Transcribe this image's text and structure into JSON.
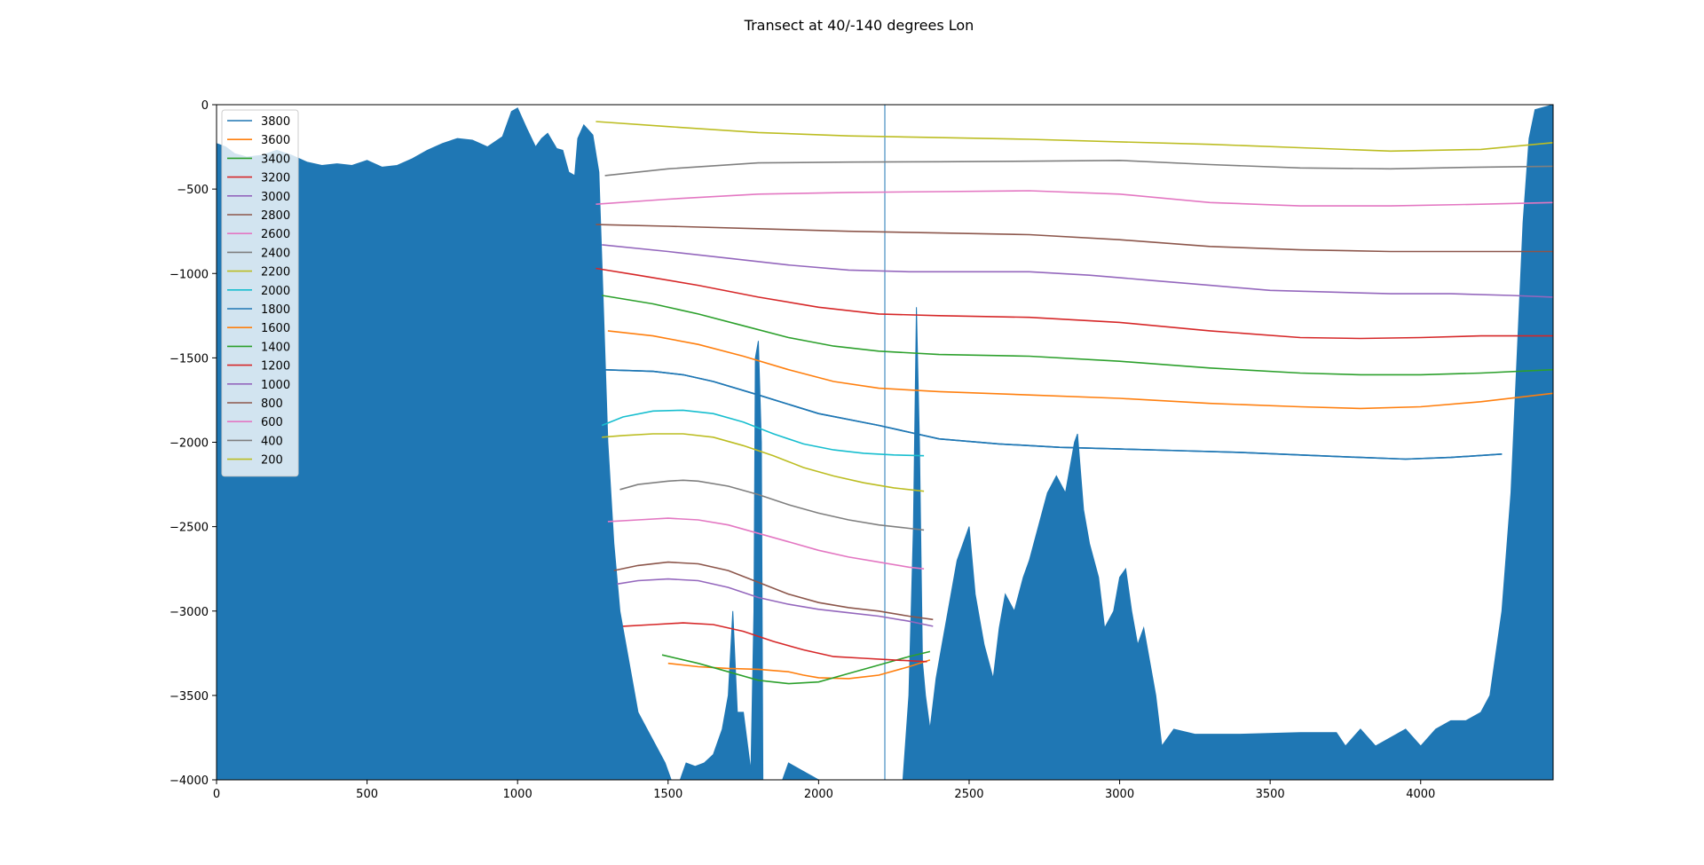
{
  "chart_data": {
    "type": "line",
    "title": "Transect at 40/-140 degrees Lon",
    "xlabel": "",
    "ylabel": "",
    "xlim": [
      0,
      4440
    ],
    "ylim": [
      -4000,
      0
    ],
    "x_ticks": [
      0,
      500,
      1000,
      1500,
      2000,
      2500,
      3000,
      3500,
      4000
    ],
    "y_ticks": [
      0,
      -500,
      -1000,
      -1500,
      -2000,
      -2500,
      -3000,
      -3500,
      -4000
    ],
    "grid": false,
    "legend_position": "upper-left",
    "vertical_line_x": 2220,
    "bathymetry": {
      "color": "#1f77b4",
      "points": [
        [
          0,
          -230
        ],
        [
          30,
          -250
        ],
        [
          60,
          -290
        ],
        [
          100,
          -310
        ],
        [
          150,
          -300
        ],
        [
          200,
          -270
        ],
        [
          250,
          -300
        ],
        [
          300,
          -340
        ],
        [
          350,
          -360
        ],
        [
          400,
          -350
        ],
        [
          450,
          -360
        ],
        [
          500,
          -330
        ],
        [
          550,
          -370
        ],
        [
          600,
          -360
        ],
        [
          650,
          -320
        ],
        [
          700,
          -270
        ],
        [
          750,
          -230
        ],
        [
          800,
          -200
        ],
        [
          850,
          -210
        ],
        [
          900,
          -250
        ],
        [
          950,
          -190
        ],
        [
          980,
          -40
        ],
        [
          1000,
          -20
        ],
        [
          1030,
          -140
        ],
        [
          1060,
          -250
        ],
        [
          1080,
          -200
        ],
        [
          1100,
          -170
        ],
        [
          1130,
          -260
        ],
        [
          1150,
          -270
        ],
        [
          1170,
          -400
        ],
        [
          1190,
          -420
        ],
        [
          1200,
          -200
        ],
        [
          1220,
          -120
        ],
        [
          1250,
          -180
        ],
        [
          1270,
          -400
        ],
        [
          1285,
          -1200
        ],
        [
          1300,
          -2000
        ],
        [
          1320,
          -2600
        ],
        [
          1340,
          -3000
        ],
        [
          1370,
          -3300
        ],
        [
          1400,
          -3600
        ],
        [
          1430,
          -3700
        ],
        [
          1460,
          -3800
        ],
        [
          1490,
          -3900
        ],
        [
          1510,
          -4000
        ],
        [
          1540,
          -4000
        ],
        [
          1560,
          -3900
        ],
        [
          1590,
          -3920
        ],
        [
          1620,
          -3900
        ],
        [
          1650,
          -3850
        ],
        [
          1680,
          -3700
        ],
        [
          1700,
          -3500
        ],
        [
          1715,
          -3000
        ],
        [
          1730,
          -3600
        ],
        [
          1750,
          -3600
        ],
        [
          1775,
          -3950
        ],
        [
          1785,
          -3000
        ],
        [
          1790,
          -1500
        ],
        [
          1800,
          -1400
        ],
        [
          1810,
          -2000
        ],
        [
          1815,
          -4000
        ],
        [
          1880,
          -4000
        ],
        [
          1900,
          -3900
        ],
        [
          1950,
          -3950
        ],
        [
          2000,
          -4000
        ],
        [
          2280,
          -4000
        ],
        [
          2300,
          -3500
        ],
        [
          2315,
          -2500
        ],
        [
          2325,
          -1200
        ],
        [
          2335,
          -2000
        ],
        [
          2345,
          -3300
        ],
        [
          2355,
          -3500
        ],
        [
          2370,
          -3700
        ],
        [
          2390,
          -3400
        ],
        [
          2410,
          -3200
        ],
        [
          2430,
          -3000
        ],
        [
          2460,
          -2700
        ],
        [
          2480,
          -2600
        ],
        [
          2500,
          -2500
        ],
        [
          2520,
          -2900
        ],
        [
          2550,
          -3200
        ],
        [
          2580,
          -3400
        ],
        [
          2600,
          -3100
        ],
        [
          2620,
          -2900
        ],
        [
          2650,
          -3000
        ],
        [
          2680,
          -2800
        ],
        [
          2700,
          -2700
        ],
        [
          2730,
          -2500
        ],
        [
          2760,
          -2300
        ],
        [
          2790,
          -2200
        ],
        [
          2820,
          -2300
        ],
        [
          2850,
          -2000
        ],
        [
          2860,
          -1950
        ],
        [
          2880,
          -2400
        ],
        [
          2900,
          -2600
        ],
        [
          2930,
          -2800
        ],
        [
          2950,
          -3100
        ],
        [
          2980,
          -3000
        ],
        [
          3000,
          -2800
        ],
        [
          3020,
          -2750
        ],
        [
          3040,
          -3000
        ],
        [
          3060,
          -3200
        ],
        [
          3080,
          -3100
        ],
        [
          3100,
          -3300
        ],
        [
          3120,
          -3500
        ],
        [
          3140,
          -3800
        ],
        [
          3180,
          -3700
        ],
        [
          3250,
          -3730
        ],
        [
          3400,
          -3730
        ],
        [
          3600,
          -3720
        ],
        [
          3720,
          -3720
        ],
        [
          3750,
          -3800
        ],
        [
          3800,
          -3700
        ],
        [
          3850,
          -3800
        ],
        [
          3900,
          -3750
        ],
        [
          3950,
          -3700
        ],
        [
          4000,
          -3800
        ],
        [
          4050,
          -3700
        ],
        [
          4100,
          -3650
        ],
        [
          4150,
          -3650
        ],
        [
          4200,
          -3600
        ],
        [
          4230,
          -3500
        ],
        [
          4270,
          -3000
        ],
        [
          4300,
          -2300
        ],
        [
          4320,
          -1500
        ],
        [
          4340,
          -700
        ],
        [
          4360,
          -200
        ],
        [
          4380,
          -30
        ],
        [
          4440,
          0
        ]
      ]
    },
    "series": [
      {
        "name": "3800",
        "color": "#1f77b4",
        "x": [
          1280,
          1450,
          1550,
          1650,
          1800,
          2000,
          2200,
          2400,
          2600,
          2800,
          3000,
          3200,
          3400,
          3600,
          3800,
          3950,
          4100,
          4270
        ],
        "y": [
          -1570,
          -1580,
          -1600,
          -1640,
          -1720,
          -1830,
          -1900,
          -1980,
          -2010,
          -2030,
          -2040,
          -2050,
          -2060,
          -2075,
          -2090,
          -2100,
          -2090,
          -2070
        ]
      },
      {
        "name": "3600",
        "color": "#ff7f0e",
        "x": [
          1500,
          1600,
          1700,
          1800,
          1900,
          1950,
          2000,
          2100,
          2200,
          2300,
          2370
        ],
        "y": [
          -3310,
          -3330,
          -3340,
          -3345,
          -3360,
          -3380,
          -3395,
          -3400,
          -3380,
          -3330,
          -3290
        ]
      },
      {
        "name": "3400",
        "color": "#2ca02c",
        "x": [
          1480,
          1600,
          1700,
          1800,
          1900,
          2000,
          2100,
          2200,
          2300,
          2370
        ],
        "y": [
          -3260,
          -3310,
          -3360,
          -3410,
          -3430,
          -3420,
          -3370,
          -3320,
          -3270,
          -3240
        ]
      },
      {
        "name": "3200",
        "color": "#d62728",
        "x": [
          1350,
          1450,
          1550,
          1650,
          1750,
          1850,
          1950,
          2050,
          2150,
          2250,
          2360
        ],
        "y": [
          -3090,
          -3080,
          -3070,
          -3080,
          -3120,
          -3180,
          -3230,
          -3270,
          -3280,
          -3290,
          -3300
        ]
      },
      {
        "name": "3000",
        "color": "#9467bd",
        "x": [
          1330,
          1400,
          1500,
          1600,
          1700,
          1800,
          1900,
          2000,
          2100,
          2200,
          2300,
          2380
        ],
        "y": [
          -2840,
          -2820,
          -2810,
          -2820,
          -2860,
          -2920,
          -2960,
          -2990,
          -3010,
          -3030,
          -3060,
          -3090
        ]
      },
      {
        "name": "2800",
        "color": "#8c564b",
        "x": [
          1320,
          1400,
          1500,
          1600,
          1700,
          1800,
          1900,
          2000,
          2100,
          2200,
          2300,
          2380
        ],
        "y": [
          -2760,
          -2730,
          -2710,
          -2720,
          -2760,
          -2830,
          -2900,
          -2950,
          -2980,
          -3000,
          -3030,
          -3050
        ]
      },
      {
        "name": "2600",
        "color": "#e377c2",
        "x": [
          1300,
          1400,
          1500,
          1600,
          1700,
          1800,
          1900,
          2000,
          2100,
          2200,
          2300,
          2350
        ],
        "y": [
          -2470,
          -2460,
          -2450,
          -2460,
          -2490,
          -2540,
          -2590,
          -2640,
          -2680,
          -2710,
          -2740,
          -2750
        ]
      },
      {
        "name": "2400",
        "color": "#7f7f7f",
        "x": [
          1340,
          1400,
          1500,
          1550,
          1600,
          1700,
          1800,
          1900,
          2000,
          2100,
          2200,
          2300,
          2350
        ],
        "y": [
          -2280,
          -2250,
          -2230,
          -2225,
          -2230,
          -2260,
          -2310,
          -2370,
          -2420,
          -2460,
          -2490,
          -2510,
          -2520
        ]
      },
      {
        "name": "2200",
        "color": "#bcbd22",
        "x": [
          1280,
          1350,
          1450,
          1550,
          1650,
          1750,
          1850,
          1950,
          2050,
          2150,
          2250,
          2350
        ],
        "y": [
          -1970,
          -1960,
          -1950,
          -1950,
          -1970,
          -2020,
          -2080,
          -2150,
          -2200,
          -2240,
          -2270,
          -2290
        ]
      },
      {
        "name": "2000",
        "color": "#17becf",
        "x": [
          1280,
          1350,
          1450,
          1550,
          1650,
          1750,
          1850,
          1950,
          2050,
          2150,
          2250,
          2350
        ],
        "y": [
          -1900,
          -1850,
          -1815,
          -1810,
          -1830,
          -1880,
          -1950,
          -2010,
          -2045,
          -2065,
          -2075,
          -2080
        ]
      },
      {
        "name": "1800",
        "color": "#1f77b4",
        "x": [
          1280,
          1450,
          1550,
          1650,
          1800,
          2000,
          2200,
          2400,
          2600,
          2800,
          3000,
          3200,
          3400,
          3600,
          3800,
          3950,
          4100,
          4270
        ],
        "y": [
          -1570,
          -1580,
          -1600,
          -1640,
          -1720,
          -1830,
          -1900,
          -1980,
          -2010,
          -2030,
          -2040,
          -2050,
          -2060,
          -2075,
          -2090,
          -2100,
          -2090,
          -2070
        ]
      },
      {
        "name": "1600",
        "color": "#ff7f0e",
        "x": [
          1300,
          1450,
          1600,
          1750,
          1900,
          2050,
          2200,
          2400,
          2700,
          3000,
          3300,
          3600,
          3800,
          4000,
          4200,
          4440
        ],
        "y": [
          -1340,
          -1370,
          -1420,
          -1490,
          -1570,
          -1640,
          -1680,
          -1700,
          -1720,
          -1740,
          -1770,
          -1790,
          -1800,
          -1790,
          -1760,
          -1710
        ]
      },
      {
        "name": "1400",
        "color": "#2ca02c",
        "x": [
          1280,
          1450,
          1600,
          1750,
          1900,
          2050,
          2200,
          2400,
          2700,
          3000,
          3300,
          3600,
          3800,
          4000,
          4200,
          4440
        ],
        "y": [
          -1130,
          -1180,
          -1240,
          -1310,
          -1380,
          -1430,
          -1460,
          -1480,
          -1490,
          -1520,
          -1560,
          -1590,
          -1600,
          -1600,
          -1590,
          -1570
        ]
      },
      {
        "name": "1200",
        "color": "#d62728",
        "x": [
          1260,
          1400,
          1600,
          1800,
          2000,
          2200,
          2400,
          2700,
          3000,
          3300,
          3600,
          3800,
          4000,
          4200,
          4440
        ],
        "y": [
          -970,
          -1010,
          -1070,
          -1140,
          -1200,
          -1240,
          -1250,
          -1260,
          -1290,
          -1340,
          -1380,
          -1385,
          -1380,
          -1370,
          -1370
        ]
      },
      {
        "name": "1000",
        "color": "#9467bd",
        "x": [
          1280,
          1500,
          1700,
          1900,
          2100,
          2300,
          2500,
          2700,
          2900,
          3100,
          3300,
          3500,
          3700,
          3900,
          4100,
          4300,
          4440
        ],
        "y": [
          -830,
          -870,
          -910,
          -950,
          -980,
          -990,
          -990,
          -990,
          -1010,
          -1040,
          -1070,
          -1100,
          -1110,
          -1120,
          -1120,
          -1130,
          -1140
        ]
      },
      {
        "name": "800",
        "color": "#8c564b",
        "x": [
          1260,
          1500,
          1800,
          2100,
          2400,
          2700,
          3000,
          3300,
          3600,
          3900,
          4200,
          4440
        ],
        "y": [
          -710,
          -720,
          -735,
          -750,
          -760,
          -770,
          -800,
          -840,
          -860,
          -870,
          -870,
          -870
        ]
      },
      {
        "name": "600",
        "color": "#e377c2",
        "x": [
          1260,
          1500,
          1800,
          2100,
          2400,
          2700,
          3000,
          3300,
          3600,
          3900,
          4200,
          4440
        ],
        "y": [
          -590,
          -560,
          -530,
          -520,
          -515,
          -510,
          -530,
          -580,
          -600,
          -600,
          -590,
          -580
        ]
      },
      {
        "name": "400",
        "color": "#7f7f7f",
        "x": [
          1290,
          1500,
          1800,
          2100,
          2400,
          2700,
          3000,
          3300,
          3600,
          3900,
          4200,
          4440
        ],
        "y": [
          -420,
          -380,
          -345,
          -340,
          -338,
          -335,
          -330,
          -355,
          -375,
          -380,
          -370,
          -365
        ]
      },
      {
        "name": "200",
        "color": "#bcbd22",
        "x": [
          1260,
          1500,
          1800,
          2100,
          2400,
          2700,
          3000,
          3300,
          3600,
          3900,
          4200,
          4440
        ],
        "y": [
          -100,
          -130,
          -165,
          -185,
          -195,
          -205,
          -220,
          -235,
          -255,
          -275,
          -265,
          -225
        ]
      }
    ]
  }
}
